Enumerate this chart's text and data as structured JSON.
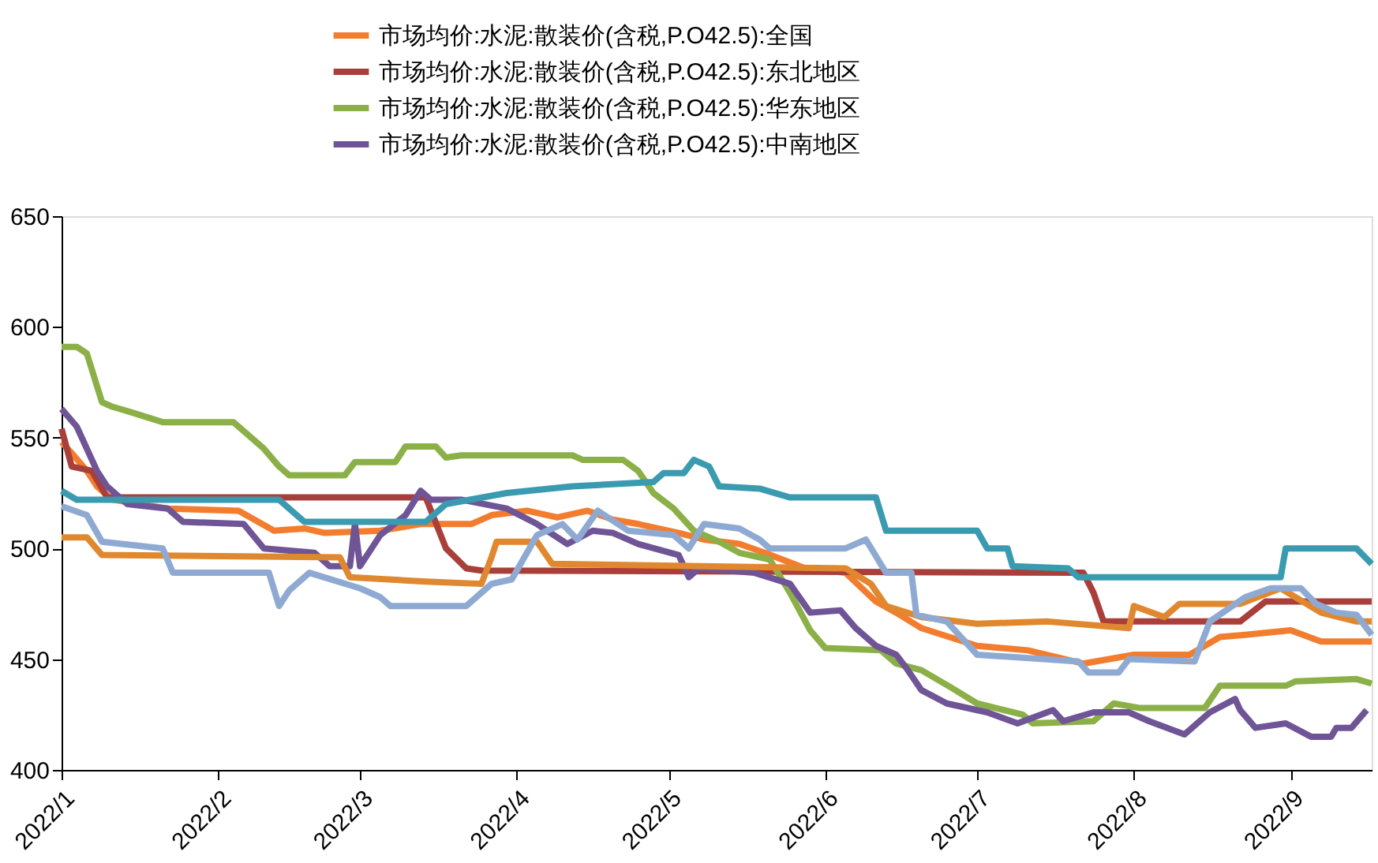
{
  "chart_data": {
    "type": "line",
    "legend": "top",
    "grid": false,
    "marker": "none",
    "line_style": "solid",
    "xlim": [
      "2022-01-01",
      "2022-09-17"
    ],
    "ylim": [
      400,
      650
    ],
    "xticks": [
      {
        "value": "2022-01-01",
        "label": "2022/1"
      },
      {
        "value": "2022-02-01",
        "label": "2022/2"
      },
      {
        "value": "2022-03-01",
        "label": "2022/3"
      },
      {
        "value": "2022-04-01",
        "label": "2022/4"
      },
      {
        "value": "2022-05-01",
        "label": "2022/5"
      },
      {
        "value": "2022-06-01",
        "label": "2022/6"
      },
      {
        "value": "2022-07-01",
        "label": "2022/7"
      },
      {
        "value": "2022-08-01",
        "label": "2022/8"
      },
      {
        "value": "2022-09-01",
        "label": "2022/9"
      }
    ],
    "yticks": [
      400,
      450,
      500,
      550,
      600,
      650
    ],
    "series": [
      {
        "name": "市场均价:水泥:散装价(含税,P.O42.5):全国",
        "color": "#f27d2e",
        "x": [
          "2022-01-01",
          "2022-01-03",
          "2022-01-06",
          "2022-01-08",
          "2022-01-11",
          "2022-01-22",
          "2022-02-05",
          "2022-02-12",
          "2022-02-18",
          "2022-02-22",
          "2022-03-05",
          "2022-03-13",
          "2022-03-23",
          "2022-03-27",
          "2022-04-03",
          "2022-04-09",
          "2022-04-15",
          "2022-04-20",
          "2022-04-25",
          "2022-05-03",
          "2022-05-08",
          "2022-05-15",
          "2022-05-20",
          "2022-05-28",
          "2022-06-05",
          "2022-06-11",
          "2022-06-15",
          "2022-06-20",
          "2022-07-01",
          "2022-07-11",
          "2022-07-22",
          "2022-08-01",
          "2022-08-12",
          "2022-08-18",
          "2022-08-23",
          "2022-09-01",
          "2022-09-07",
          "2022-09-17"
        ],
        "values": [
          548,
          543,
          535,
          528,
          522,
          518,
          517,
          508,
          509,
          507,
          508,
          511,
          511,
          515,
          517,
          514,
          517,
          513,
          511,
          507,
          504,
          502,
          498,
          491,
          489,
          476,
          471,
          464,
          456,
          454,
          448,
          452,
          452,
          460,
          461,
          463,
          458,
          458
        ]
      },
      {
        "name": "市场均价:水泥:散装价(含税,P.O42.5):东北地区",
        "color": "#a93f3a",
        "x": [
          "2022-01-01",
          "2022-01-03",
          "2022-01-07",
          "2022-01-10",
          "2022-03-14",
          "2022-03-18",
          "2022-03-22",
          "2022-03-25",
          "2022-07-22",
          "2022-07-24",
          "2022-07-26",
          "2022-08-22",
          "2022-08-27",
          "2022-09-17"
        ],
        "values": [
          554,
          537,
          535,
          523,
          523,
          500,
          491,
          490,
          489,
          480,
          467,
          467,
          476,
          476
        ]
      },
      {
        "name": "市场均价:水泥:散装价(含税,P.O42.5):华东地区",
        "color": "#8bb048",
        "x": [
          "2022-01-01",
          "2022-01-04",
          "2022-01-06",
          "2022-01-09",
          "2022-01-11",
          "2022-01-14",
          "2022-01-21",
          "2022-02-04",
          "2022-02-07",
          "2022-02-10",
          "2022-02-13",
          "2022-02-15",
          "2022-02-26",
          "2022-02-28",
          "2022-03-08",
          "2022-03-10",
          "2022-03-16",
          "2022-03-18",
          "2022-03-21",
          "2022-04-12",
          "2022-04-14",
          "2022-04-22",
          "2022-04-25",
          "2022-04-28",
          "2022-05-02",
          "2022-05-06",
          "2022-05-11",
          "2022-05-15",
          "2022-05-21",
          "2022-05-25",
          "2022-05-29",
          "2022-06-01",
          "2022-06-12",
          "2022-06-15",
          "2022-06-20",
          "2022-06-26",
          "2022-07-01",
          "2022-07-10",
          "2022-07-12",
          "2022-07-24",
          "2022-07-28",
          "2022-08-02",
          "2022-08-15",
          "2022-08-18",
          "2022-08-31",
          "2022-09-02",
          "2022-09-14",
          "2022-09-17"
        ],
        "values": [
          591,
          591,
          588,
          566,
          564,
          562,
          557,
          557,
          551,
          545,
          537,
          533,
          533,
          539,
          539,
          546,
          546,
          541,
          542,
          542,
          540,
          540,
          535,
          525,
          518,
          508,
          503,
          498,
          495,
          480,
          463,
          455,
          454,
          448,
          445,
          437,
          430,
          425,
          421,
          422,
          430,
          428,
          428,
          438,
          438,
          440,
          441,
          439
        ]
      },
      {
        "name": "市场均价:水泥:散装价(含税,P.O42.5):中南地区",
        "color": "#6f5596",
        "x": [
          "2022-01-01",
          "2022-01-04",
          "2022-01-08",
          "2022-01-10",
          "2022-01-14",
          "2022-01-22",
          "2022-01-25",
          "2022-02-06",
          "2022-02-10",
          "2022-02-20",
          "2022-02-23",
          "2022-02-27",
          "2022-02-28",
          "2022-03-01",
          "2022-03-05",
          "2022-03-10",
          "2022-03-13",
          "2022-03-15",
          "2022-03-21",
          "2022-03-30",
          "2022-04-05",
          "2022-04-11",
          "2022-04-16",
          "2022-04-20",
          "2022-04-25",
          "2022-05-03",
          "2022-05-05",
          "2022-05-07",
          "2022-05-18",
          "2022-05-25",
          "2022-05-29",
          "2022-06-04",
          "2022-06-07",
          "2022-06-11",
          "2022-06-15",
          "2022-06-17",
          "2022-06-20",
          "2022-06-25",
          "2022-07-03",
          "2022-07-09",
          "2022-07-16",
          "2022-07-18",
          "2022-07-24",
          "2022-07-31",
          "2022-08-04",
          "2022-08-11",
          "2022-08-16",
          "2022-08-21",
          "2022-08-22",
          "2022-08-25",
          "2022-08-31",
          "2022-09-05",
          "2022-09-09",
          "2022-09-10",
          "2022-09-13",
          "2022-09-16"
        ],
        "values": [
          563,
          555,
          535,
          528,
          520,
          518,
          512,
          511,
          500,
          498,
          492,
          492,
          511,
          492,
          506,
          515,
          526,
          522,
          522,
          518,
          511,
          502,
          508,
          507,
          502,
          497,
          487,
          491,
          489,
          484,
          471,
          472,
          464,
          456,
          452,
          446,
          436,
          430,
          426,
          421,
          427,
          422,
          426,
          426,
          422,
          416,
          426,
          432,
          427,
          419,
          421,
          415,
          415,
          419,
          419,
          427
        ]
      },
      {
        "color": "#3a9ab0",
        "x": [
          "2022-01-01",
          "2022-01-04",
          "2022-02-13",
          "2022-02-18",
          "2022-03-14",
          "2022-03-18",
          "2022-03-30",
          "2022-04-12",
          "2022-04-28",
          "2022-04-30",
          "2022-05-04",
          "2022-05-06",
          "2022-05-09",
          "2022-05-11",
          "2022-05-19",
          "2022-05-25",
          "2022-06-11",
          "2022-06-13",
          "2022-07-01",
          "2022-07-03",
          "2022-07-07",
          "2022-07-08",
          "2022-07-19",
          "2022-07-21",
          "2022-08-30",
          "2022-08-31",
          "2022-09-14",
          "2022-09-17"
        ],
        "values": [
          526,
          522,
          522,
          512,
          512,
          520,
          525,
          528,
          530,
          534,
          534,
          540,
          537,
          528,
          527,
          523,
          523,
          508,
          508,
          500,
          500,
          492,
          491,
          487,
          487,
          500,
          500,
          493
        ]
      },
      {
        "color": "#e0882f",
        "x": [
          "2022-01-01",
          "2022-01-06",
          "2022-01-09",
          "2022-02-25",
          "2022-02-27",
          "2022-03-14",
          "2022-03-25",
          "2022-03-27",
          "2022-03-28",
          "2022-04-05",
          "2022-04-08",
          "2022-06-05",
          "2022-06-10",
          "2022-06-13",
          "2022-06-20",
          "2022-07-01",
          "2022-07-15",
          "2022-07-31",
          "2022-08-01",
          "2022-08-07",
          "2022-08-10",
          "2022-08-22",
          "2022-08-30",
          "2022-09-07",
          "2022-09-14",
          "2022-09-17"
        ],
        "values": [
          505,
          505,
          497,
          496,
          487,
          485,
          484,
          496,
          503,
          503,
          493,
          491,
          484,
          474,
          469,
          466,
          467,
          464,
          474,
          469,
          475,
          475,
          482,
          471,
          467,
          467
        ]
      },
      {
        "color": "#8faad2",
        "x": [
          "2022-01-01",
          "2022-01-06",
          "2022-01-09",
          "2022-01-21",
          "2022-01-23",
          "2022-02-11",
          "2022-02-13",
          "2022-02-15",
          "2022-02-19",
          "2022-03-01",
          "2022-03-05",
          "2022-03-07",
          "2022-03-22",
          "2022-03-27",
          "2022-03-31",
          "2022-04-05",
          "2022-04-10",
          "2022-04-13",
          "2022-04-17",
          "2022-04-23",
          "2022-05-02",
          "2022-05-05",
          "2022-05-08",
          "2022-05-15",
          "2022-05-19",
          "2022-05-21",
          "2022-06-05",
          "2022-06-09",
          "2022-06-13",
          "2022-06-18",
          "2022-06-19",
          "2022-06-25",
          "2022-07-01",
          "2022-07-21",
          "2022-07-23",
          "2022-07-29",
          "2022-07-31",
          "2022-08-13",
          "2022-08-16",
          "2022-08-23",
          "2022-08-28",
          "2022-09-03",
          "2022-09-06",
          "2022-09-10",
          "2022-09-14",
          "2022-09-17"
        ],
        "values": [
          519,
          515,
          503,
          500,
          489,
          489,
          474,
          481,
          489,
          482,
          478,
          474,
          474,
          484,
          486,
          506,
          511,
          504,
          517,
          508,
          506,
          500,
          511,
          509,
          504,
          500,
          500,
          504,
          489,
          489,
          470,
          467,
          452,
          449,
          444,
          444,
          450,
          449,
          467,
          478,
          482,
          482,
          475,
          471,
          470,
          461
        ]
      }
    ]
  }
}
